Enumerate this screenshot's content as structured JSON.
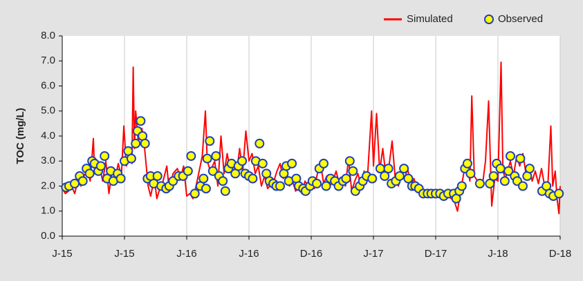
{
  "chart_data": {
    "type": "line",
    "ylabel": "TOC (mg/L)",
    "xlim": [
      0,
      8
    ],
    "xticks": [
      {
        "value": 0,
        "label": "J-15"
      },
      {
        "value": 1,
        "label": "J-15"
      },
      {
        "value": 2,
        "label": "J-16"
      },
      {
        "value": 3,
        "label": "J-16"
      },
      {
        "value": 4,
        "label": "D-16"
      },
      {
        "value": 5,
        "label": "J-17"
      },
      {
        "value": 6,
        "label": "D-17"
      },
      {
        "value": 7,
        "label": "J-18"
      },
      {
        "value": 8,
        "label": "D-18"
      }
    ],
    "ylim": [
      0,
      8
    ],
    "yticks": [
      {
        "value": 0,
        "label": "0.0"
      },
      {
        "value": 1,
        "label": "1.0"
      },
      {
        "value": 2,
        "label": "2.0"
      },
      {
        "value": 3,
        "label": "3.0"
      },
      {
        "value": 4,
        "label": "4.0"
      },
      {
        "value": 5,
        "label": "5.0"
      },
      {
        "value": 6,
        "label": "6.0"
      },
      {
        "value": 7,
        "label": "7.0"
      },
      {
        "value": 8,
        "label": "8.0"
      }
    ],
    "grid": "x",
    "legend": "top-right",
    "series": [
      {
        "name": "Simulated",
        "type": "line",
        "color": "#ff0000",
        "x": [
          0.0,
          0.05,
          0.1,
          0.15,
          0.2,
          0.25,
          0.3,
          0.35,
          0.4,
          0.45,
          0.5,
          0.52,
          0.6,
          0.65,
          0.7,
          0.75,
          0.8,
          0.85,
          0.9,
          0.95,
          0.99,
          1.03,
          1.08,
          1.12,
          1.14,
          1.16,
          1.18,
          1.22,
          1.28,
          1.32,
          1.38,
          1.42,
          1.48,
          1.52,
          1.58,
          1.62,
          1.68,
          1.72,
          1.78,
          1.85,
          1.9,
          1.95,
          2.0,
          2.05,
          2.1,
          2.15,
          2.2,
          2.25,
          2.3,
          2.33,
          2.38,
          2.45,
          2.5,
          2.55,
          2.6,
          2.65,
          2.7,
          2.75,
          2.8,
          2.85,
          2.9,
          2.95,
          3.0,
          3.05,
          3.1,
          3.15,
          3.2,
          3.25,
          3.3,
          3.4,
          3.45,
          3.5,
          3.55,
          3.6,
          3.65,
          3.7,
          3.75,
          3.8,
          3.85,
          3.9,
          3.95,
          4.0,
          4.05,
          4.1,
          4.15,
          4.2,
          4.25,
          4.3,
          4.35,
          4.4,
          4.45,
          4.5,
          4.55,
          4.6,
          4.65,
          4.7,
          4.75,
          4.8,
          4.85,
          4.9,
          4.97,
          5.0,
          5.05,
          5.1,
          5.15,
          5.2,
          5.25,
          5.3,
          5.35,
          5.4,
          5.45,
          5.5,
          5.55,
          5.6,
          5.65,
          5.7,
          5.75,
          5.8,
          5.85,
          5.9,
          6.0,
          6.1,
          6.2,
          6.3,
          6.35,
          6.4,
          6.45,
          6.5,
          6.55,
          6.58,
          6.62,
          6.7,
          6.75,
          6.8,
          6.85,
          6.9,
          6.95,
          7.0,
          7.05,
          7.08,
          7.12,
          7.2,
          7.25,
          7.3,
          7.35,
          7.4,
          7.45,
          7.5,
          7.55,
          7.6,
          7.65,
          7.7,
          7.75,
          7.8,
          7.85,
          7.88,
          7.92,
          7.95,
          7.98,
          8.0
        ],
        "values": [
          1.9,
          1.7,
          1.8,
          2.0,
          1.7,
          2.2,
          2.0,
          2.4,
          2.6,
          2.2,
          3.9,
          2.5,
          2.8,
          2.2,
          3.0,
          1.7,
          2.6,
          2.3,
          2.9,
          2.4,
          4.4,
          2.8,
          3.2,
          2.9,
          6.75,
          3.5,
          5.0,
          3.8,
          4.3,
          3.6,
          2.0,
          1.6,
          2.3,
          1.5,
          2.0,
          2.2,
          2.8,
          1.8,
          2.5,
          2.7,
          2.3,
          2.8,
          1.6,
          1.7,
          1.5,
          2.0,
          2.6,
          3.2,
          5.0,
          3.0,
          2.6,
          3.0,
          2.0,
          4.0,
          2.5,
          3.3,
          2.6,
          2.8,
          2.5,
          3.5,
          2.6,
          4.2,
          3.0,
          3.3,
          2.5,
          2.8,
          2.0,
          2.4,
          1.9,
          2.2,
          2.6,
          2.9,
          2.3,
          2.7,
          2.0,
          2.2,
          1.8,
          2.0,
          1.7,
          2.2,
          2.0,
          2.2,
          1.9,
          2.5,
          2.9,
          2.1,
          2.4,
          2.0,
          2.2,
          2.6,
          2.1,
          2.3,
          2.0,
          3.1,
          1.8,
          2.2,
          2.5,
          2.0,
          2.6,
          2.2,
          5.0,
          2.8,
          4.9,
          2.6,
          3.5,
          2.4,
          2.8,
          3.8,
          2.3,
          2.0,
          2.4,
          2.3,
          2.7,
          2.0,
          2.3,
          1.9,
          2.0,
          1.8,
          1.7,
          1.7,
          1.7,
          1.7,
          1.6,
          1.4,
          1.0,
          1.8,
          2.5,
          2.9,
          2.2,
          5.6,
          2.4,
          2.1,
          2.0,
          3.0,
          5.4,
          1.2,
          2.3,
          2.2,
          6.95,
          2.6,
          2.3,
          3.0,
          2.4,
          3.2,
          2.8,
          3.3,
          2.5,
          2.8,
          2.2,
          2.6,
          2.1,
          2.7,
          2.0,
          1.9,
          4.4,
          2.0,
          2.6,
          1.5,
          0.9,
          2.0
        ]
      },
      {
        "name": "Observed",
        "type": "scatter",
        "color": "#ffff00",
        "edgecolor": "#1f3fbf",
        "x": [
          0.06,
          0.11,
          0.2,
          0.28,
          0.33,
          0.39,
          0.44,
          0.48,
          0.52,
          0.58,
          0.62,
          0.68,
          0.72,
          0.78,
          0.82,
          0.89,
          0.94,
          1.0,
          1.06,
          1.11,
          1.18,
          1.21,
          1.26,
          1.29,
          1.33,
          1.37,
          1.42,
          1.47,
          1.53,
          1.59,
          1.67,
          1.72,
          1.78,
          1.87,
          1.94,
          2.02,
          2.07,
          2.13,
          2.22,
          2.27,
          2.31,
          2.33,
          2.37,
          2.42,
          2.47,
          2.52,
          2.58,
          2.62,
          2.67,
          2.72,
          2.78,
          2.83,
          2.89,
          2.94,
          3.0,
          3.06,
          3.11,
          3.17,
          3.22,
          3.28,
          3.33,
          3.39,
          3.44,
          3.5,
          3.56,
          3.6,
          3.64,
          3.69,
          3.76,
          3.8,
          3.87,
          3.91,
          3.98,
          4.02,
          4.09,
          4.13,
          4.2,
          4.24,
          4.31,
          4.38,
          4.44,
          4.51,
          4.56,
          4.62,
          4.67,
          4.71,
          4.78,
          4.83,
          4.89,
          4.98,
          5.11,
          5.18,
          5.24,
          5.29,
          5.36,
          5.42,
          5.49,
          5.56,
          5.62,
          5.67,
          5.73,
          5.8,
          5.87,
          5.93,
          6.0,
          6.07,
          6.13,
          6.2,
          6.29,
          6.33,
          6.38,
          6.42,
          6.47,
          6.51,
          6.56,
          6.71,
          6.87,
          6.93,
          6.98,
          7.04,
          7.11,
          7.17,
          7.2,
          7.27,
          7.31,
          7.36,
          7.4,
          7.47,
          7.51,
          7.71,
          7.78,
          7.83,
          7.89,
          7.98
        ],
        "values": [
          1.95,
          2.0,
          2.1,
          2.4,
          2.2,
          2.7,
          2.5,
          3.0,
          2.9,
          2.6,
          2.8,
          3.2,
          2.3,
          2.6,
          2.2,
          2.5,
          2.3,
          3.0,
          3.4,
          3.1,
          3.7,
          4.2,
          4.6,
          4.0,
          3.7,
          2.3,
          2.4,
          2.1,
          2.4,
          2.0,
          1.9,
          2.0,
          2.2,
          2.4,
          2.4,
          2.6,
          3.2,
          1.7,
          2.0,
          2.3,
          1.9,
          3.1,
          3.8,
          2.6,
          3.2,
          2.4,
          2.2,
          1.8,
          2.7,
          2.9,
          2.5,
          2.8,
          3.0,
          2.5,
          2.4,
          2.3,
          3.0,
          3.7,
          2.9,
          2.5,
          2.2,
          2.1,
          2.0,
          2.0,
          2.5,
          2.8,
          2.2,
          2.9,
          2.3,
          2.0,
          1.9,
          1.8,
          2.0,
          2.2,
          2.1,
          2.7,
          2.9,
          2.0,
          2.3,
          2.2,
          2.0,
          2.2,
          2.3,
          3.0,
          2.6,
          1.8,
          2.0,
          2.2,
          2.4,
          2.3,
          2.7,
          2.4,
          2.7,
          2.1,
          2.2,
          2.4,
          2.7,
          2.3,
          2.0,
          2.0,
          1.9,
          1.7,
          1.7,
          1.7,
          1.7,
          1.7,
          1.6,
          1.7,
          1.7,
          1.5,
          1.8,
          2.0,
          2.7,
          2.9,
          2.5,
          2.1,
          2.1,
          2.4,
          2.9,
          2.7,
          2.2,
          2.6,
          3.2,
          2.4,
          2.2,
          3.1,
          2.0,
          2.4,
          2.7,
          1.8,
          2.0,
          1.7,
          1.6,
          1.7
        ]
      }
    ]
  }
}
